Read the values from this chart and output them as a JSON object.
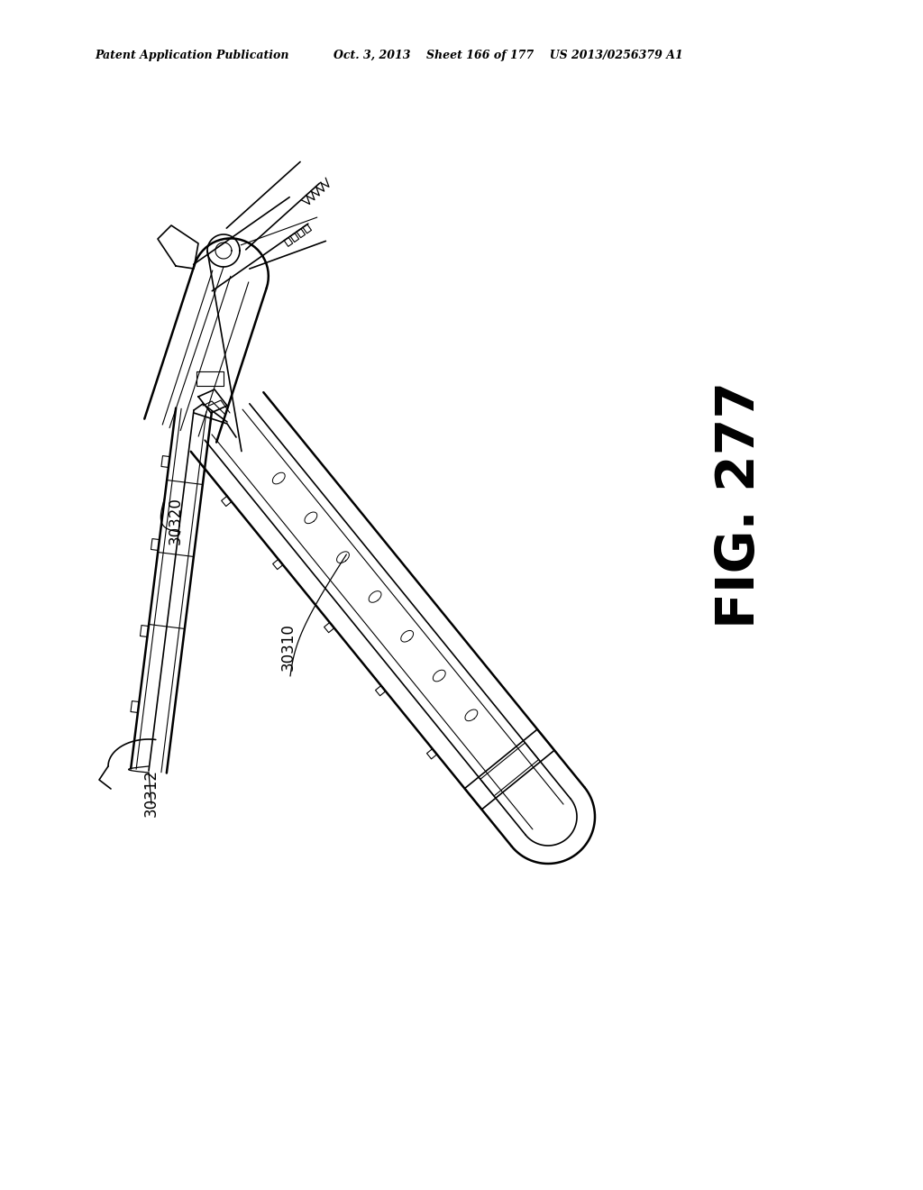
{
  "background_color": "#ffffff",
  "header_left": "Patent Application Publication",
  "header_mid": "Oct. 3, 2013    Sheet 166 of 177    US 2013/0256379 A1",
  "fig_label": "FIG. 277",
  "ref_30320": "30320",
  "ref_30310": "30310",
  "ref_30312": "30312",
  "fig_width": 10.24,
  "fig_height": 13.2,
  "dpi": 100
}
